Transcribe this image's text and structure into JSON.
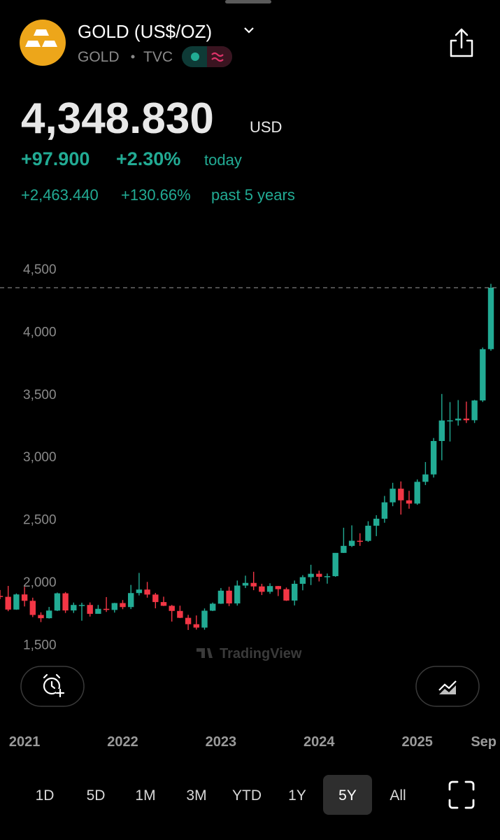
{
  "header": {
    "title": "GOLD (US$/OZ)",
    "symbol": "GOLD",
    "exchange": "TVC"
  },
  "quote": {
    "price": "4,348.830",
    "currency": "USD",
    "change": "+97.900",
    "change_pct": "+2.30%",
    "change_period": "today",
    "long_change": "+2,463.440",
    "long_change_pct": "+130.66%",
    "long_period": "past 5 years"
  },
  "watermark": "TradingView",
  "ranges": [
    "1D",
    "5D",
    "1M",
    "3M",
    "YTD",
    "1Y",
    "5Y",
    "All"
  ],
  "active_range": "5Y",
  "chart_data": {
    "type": "candlestick",
    "categories": [
      null,
      null,
      null,
      "2021",
      null,
      null,
      null,
      null,
      null,
      null,
      null,
      null,
      null,
      null,
      null,
      "2022",
      null,
      null,
      null,
      null,
      null,
      null,
      null,
      null,
      null,
      null,
      null,
      "2023",
      null,
      null,
      null,
      null,
      null,
      null,
      null,
      null,
      null,
      null,
      null,
      "2024",
      null,
      null,
      null,
      null,
      null,
      null,
      null,
      null,
      null,
      null,
      null,
      "2025",
      null,
      null,
      null,
      null,
      null,
      null,
      null,
      "Sep",
      null
    ],
    "open": [
      1886,
      1879,
      1777,
      1898,
      1847,
      1734,
      1708,
      1769,
      1907,
      1770,
      1814,
      1814,
      1743,
      1783,
      1774,
      1829,
      1797,
      1909,
      1937,
      1897,
      1837,
      1807,
      1766,
      1711,
      1660,
      1633,
      1768,
      1824,
      1928,
      1826,
      1969,
      1990,
      1962,
      1919,
      1965,
      1940,
      1849,
      1983,
      2036,
      2063,
      2039,
      2044,
      2230,
      2286,
      2327,
      2326,
      2447,
      2503,
      2634,
      2743,
      2650,
      2624,
      2798,
      2857,
      3124,
      3288,
      3289,
      3303,
      3290,
      3448,
      3858
    ],
    "high": [
      1933,
      1966,
      1906,
      1959,
      1872,
      1755,
      1798,
      1913,
      1917,
      1833,
      1832,
      1834,
      1814,
      1877,
      1831,
      1853,
      1974,
      2070,
      1998,
      1910,
      1880,
      1814,
      1808,
      1735,
      1730,
      1786,
      1833,
      1949,
      1959,
      2009,
      2048,
      2079,
      1983,
      1987,
      1966,
      1953,
      2009,
      2052,
      2135,
      2088,
      2065,
      2222,
      2431,
      2450,
      2387,
      2483,
      2531,
      2685,
      2790,
      2801,
      2726,
      2817,
      2956,
      3148,
      3500,
      3435,
      3451,
      3439,
      3453,
      3871,
      4380
    ],
    "low": [
      1860,
      1764,
      1775,
      1802,
      1717,
      1677,
      1705,
      1765,
      1750,
      1750,
      1688,
      1721,
      1746,
      1758,
      1753,
      1780,
      1781,
      1890,
      1872,
      1787,
      1805,
      1681,
      1709,
      1614,
      1617,
      1616,
      1765,
      1822,
      1805,
      1809,
      1949,
      1932,
      1893,
      1903,
      1885,
      1846,
      1810,
      1931,
      1973,
      2002,
      1984,
      2039,
      2229,
      2277,
      2286,
      2318,
      2364,
      2471,
      2603,
      2536,
      2583,
      2614,
      2772,
      2832,
      2970,
      3120,
      3247,
      3268,
      3268,
      3436,
      3845
    ],
    "close": [
      1879,
      1777,
      1898,
      1847,
      1734,
      1708,
      1769,
      1907,
      1770,
      1814,
      1814,
      1743,
      1783,
      1774,
      1829,
      1797,
      1909,
      1937,
      1897,
      1837,
      1807,
      1766,
      1711,
      1660,
      1633,
      1768,
      1824,
      1928,
      1826,
      1969,
      1990,
      1962,
      1919,
      1965,
      1940,
      1849,
      1983,
      2036,
      2063,
      2039,
      2044,
      2230,
      2286,
      2327,
      2326,
      2447,
      2503,
      2634,
      2743,
      2650,
      2624,
      2798,
      2857,
      3124,
      3288,
      3289,
      3303,
      3290,
      3448,
      3858,
      4348.83
    ],
    "up_color": "#22ab94",
    "down_color": "#f23645",
    "ylim": [
      900,
      4800
    ],
    "yticks": [
      {
        "value": 1500,
        "label": "1,500"
      },
      {
        "value": 2000,
        "label": "2,000"
      },
      {
        "value": 2500,
        "label": "2,500"
      },
      {
        "value": 3000,
        "label": "3,000"
      },
      {
        "value": 3500,
        "label": "3,500"
      },
      {
        "value": 4000,
        "label": "4,000"
      },
      {
        "value": 4500,
        "label": "4,500"
      }
    ],
    "grid": false
  }
}
